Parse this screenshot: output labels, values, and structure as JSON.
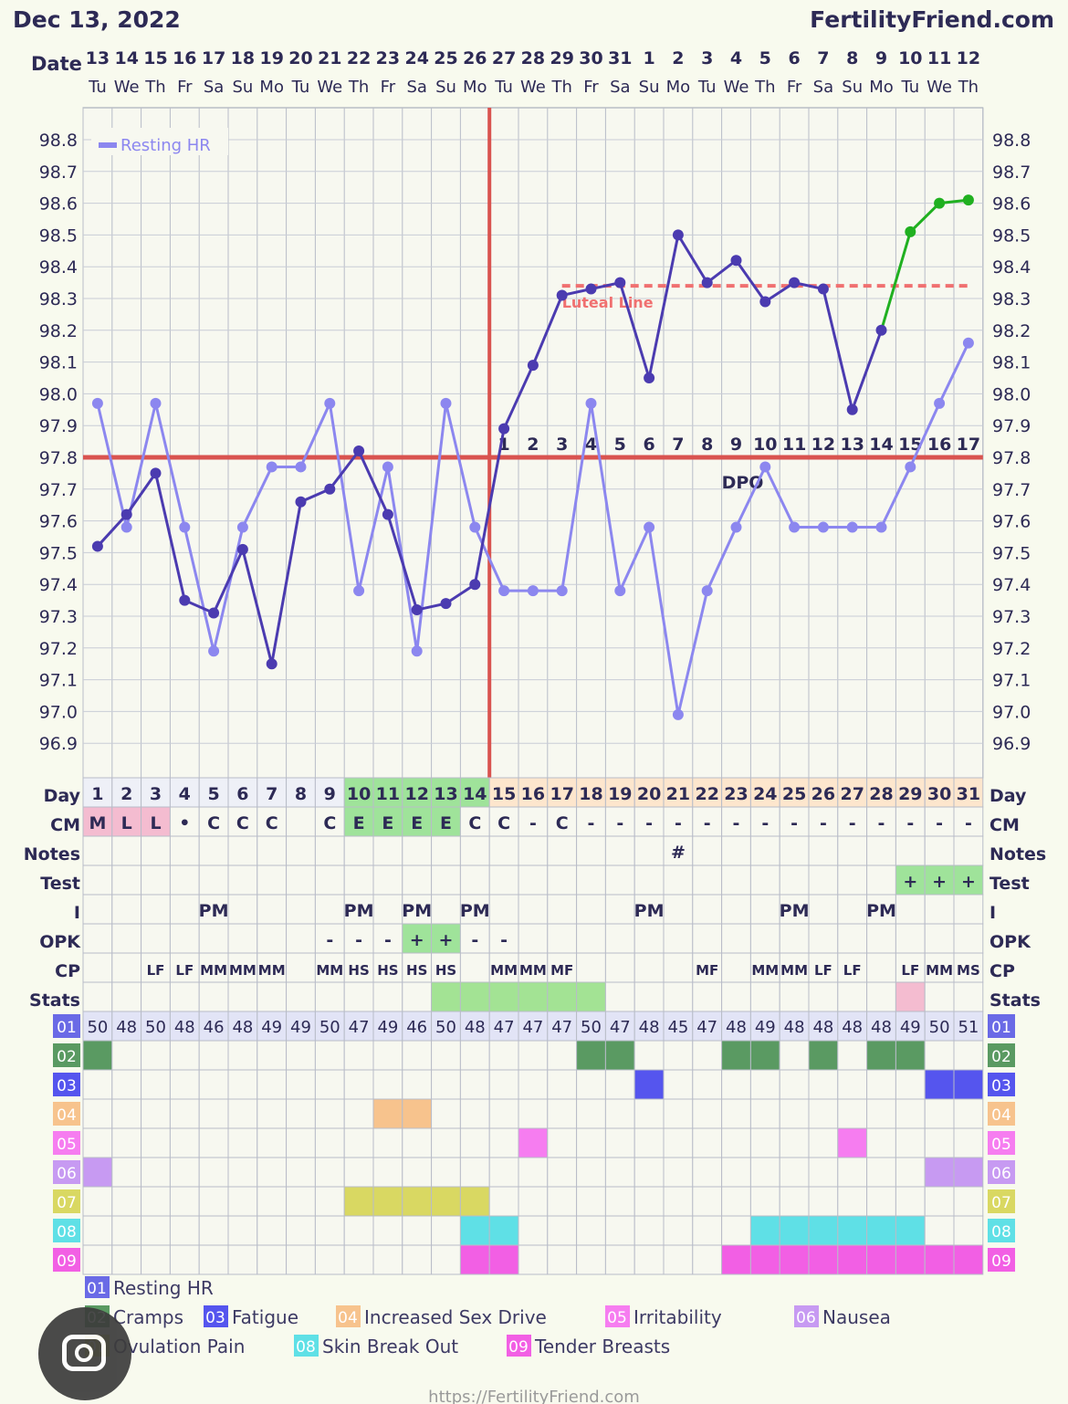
{
  "header": {
    "date": "Dec 13, 2022",
    "site": "FertilityFriend.com"
  },
  "footer": {
    "url": "https://FertilityFriend.com"
  },
  "colors": {
    "temp_line": "#4b3bb0",
    "temp_dot": "#4b3bb0",
    "hr_line": "#8c87ef",
    "post_line": "#20b020",
    "coverline": "#d9534f",
    "ovulation": "#d9534f",
    "luteal": "#f07070",
    "s01": "#6a6ae6",
    "s02": "#5a9a62",
    "s03": "#5555ee",
    "s04": "#f7c38d",
    "s05": "#f67df0",
    "s06": "#c79af2",
    "s07": "#d9d862",
    "s08": "#5fe0e6",
    "s09": "#f25fe4"
  },
  "labels": {
    "date": "Date",
    "day": "Day",
    "cm": "CM",
    "notes": "Notes",
    "test": "Test",
    "i": "I",
    "opk": "OPK",
    "cp": "CP",
    "stats": "Stats",
    "dpo": "DPO"
  },
  "chart_data": {
    "type": "line",
    "title": "",
    "dates": [
      "13",
      "14",
      "15",
      "16",
      "17",
      "18",
      "19",
      "20",
      "21",
      "22",
      "23",
      "24",
      "25",
      "26",
      "27",
      "28",
      "29",
      "30",
      "31",
      "1",
      "2",
      "3",
      "4",
      "5",
      "6",
      "7",
      "8",
      "9",
      "10",
      "11",
      "12"
    ],
    "weekdays": [
      "Tu",
      "We",
      "Th",
      "Fr",
      "Sa",
      "Su",
      "Mo",
      "Tu",
      "We",
      "Th",
      "Fr",
      "Sa",
      "Su",
      "Mo",
      "Tu",
      "We",
      "Th",
      "Fr",
      "Sa",
      "Su",
      "Mo",
      "Tu",
      "We",
      "Th",
      "Fr",
      "Sa",
      "Su",
      "Mo",
      "Tu",
      "We",
      "Th"
    ],
    "cycle_days": [
      "1",
      "2",
      "3",
      "4",
      "5",
      "6",
      "7",
      "8",
      "9",
      "10",
      "11",
      "12",
      "13",
      "14",
      "15",
      "16",
      "17",
      "18",
      "19",
      "20",
      "21",
      "22",
      "23",
      "24",
      "25",
      "26",
      "27",
      "28",
      "29",
      "30",
      "31"
    ],
    "y_ticks": [
      "98.8",
      "98.7",
      "98.6",
      "98.5",
      "98.4",
      "98.3",
      "98.2",
      "98.1",
      "98.0",
      "97.9",
      "97.8",
      "97.7",
      "97.6",
      "97.5",
      "97.4",
      "97.3",
      "97.2",
      "97.1",
      "97.0",
      "96.9"
    ],
    "ylim": [
      96.86,
      98.86
    ],
    "coverline": 97.8,
    "ovulation_day": 14,
    "luteal_line": {
      "label": "Luteal Line",
      "value": 98.34,
      "from_day": 17,
      "to_day": 31
    },
    "dpo_label": "DPO",
    "dpo_numbers": [
      "1",
      "2",
      "3",
      "4",
      "5",
      "6",
      "7",
      "8",
      "9",
      "10",
      "11",
      "12",
      "13",
      "14",
      "15",
      "16",
      "17"
    ],
    "series": [
      {
        "name": "Temperature",
        "values": [
          97.52,
          97.62,
          97.75,
          97.35,
          97.31,
          97.51,
          97.15,
          97.66,
          97.7,
          97.82,
          97.62,
          97.32,
          97.34,
          97.4,
          97.89,
          98.09,
          98.31,
          98.33,
          98.35,
          98.05,
          98.5,
          98.35,
          98.42,
          98.29,
          98.35,
          98.33,
          97.95,
          98.2,
          98.51,
          98.6,
          98.61
        ]
      },
      {
        "name": "Resting HR",
        "values": [
          97.97,
          97.58,
          97.97,
          97.58,
          97.19,
          97.58,
          97.77,
          97.77,
          97.97,
          97.38,
          97.77,
          97.19,
          97.97,
          97.58,
          97.38,
          97.38,
          97.38,
          97.97,
          97.38,
          97.58,
          96.99,
          97.38,
          97.58,
          97.77,
          97.58,
          97.58,
          97.58,
          97.58,
          97.77,
          97.97,
          98.16
        ]
      }
    ],
    "legend": "top-left"
  },
  "rows": {
    "cm": [
      "M",
      "L",
      "L",
      "•",
      "C",
      "C",
      "C",
      "",
      "C",
      "E",
      "E",
      "E",
      "E",
      "C",
      "C",
      "-",
      "C",
      "-",
      "-",
      "-",
      "-",
      "-",
      "-",
      "-",
      "-",
      "-",
      "-",
      "-",
      "-",
      "-",
      "-"
    ],
    "notes": [
      "",
      "",
      "",
      "",
      "",
      "",
      "",
      "",
      "",
      "",
      "",
      "",
      "",
      "",
      "",
      "",
      "",
      "",
      "",
      "",
      "#",
      "",
      "",
      "",
      "",
      "",
      "",
      "",
      "",
      "",
      ""
    ],
    "test": [
      "",
      "",
      "",
      "",
      "",
      "",
      "",
      "",
      "",
      "",
      "",
      "",
      "",
      "",
      "",
      "",
      "",
      "",
      "",
      "",
      "",
      "",
      "",
      "",
      "",
      "",
      "",
      "",
      "+",
      "+",
      "+"
    ],
    "intercourse": [
      "",
      "",
      "",
      "",
      "PM",
      "",
      "",
      "",
      "",
      "PM",
      "",
      "PM",
      "",
      "PM",
      "",
      "",
      "",
      "",
      "",
      "PM",
      "",
      "",
      "",
      "",
      "PM",
      "",
      "",
      "PM",
      "",
      "",
      ""
    ],
    "opk": [
      "",
      "",
      "",
      "",
      "",
      "",
      "",
      "",
      "-",
      "-",
      "-",
      "+",
      "+",
      "-",
      "-",
      "",
      "",
      "",
      "",
      "",
      "",
      "",
      "",
      "",
      "",
      "",
      "",
      "",
      "",
      "",
      ""
    ],
    "cp": [
      "",
      "",
      "LF",
      "LF",
      "MM",
      "MM",
      "MM",
      "",
      "MM",
      "HS",
      "HS",
      "HS",
      "HS",
      "",
      "MM",
      "MM",
      "MF",
      "",
      "",
      "",
      "",
      "MF",
      "",
      "MM",
      "MM",
      "LF",
      "LF",
      "",
      "LF",
      "MM",
      "MS"
    ],
    "stats": [
      "",
      "",
      "",
      "",
      "",
      "",
      "",
      "",
      "",
      "",
      "",
      "",
      "",
      "",
      "",
      "",
      "",
      "",
      "",
      "",
      "",
      "",
      "",
      "",
      "",
      "",
      "",
      "",
      "",
      "",
      ""
    ],
    "hr": [
      "50",
      "48",
      "50",
      "48",
      "46",
      "48",
      "49",
      "49",
      "50",
      "47",
      "49",
      "46",
      "50",
      "48",
      "47",
      "47",
      "47",
      "50",
      "47",
      "48",
      "45",
      "47",
      "48",
      "49",
      "48",
      "48",
      "48",
      "48",
      "49",
      "50",
      "51"
    ]
  },
  "symptom_rows": [
    "01",
    "02",
    "03",
    "04",
    "05",
    "06",
    "07",
    "08",
    "09"
  ],
  "symptom_days": {
    "02": [
      1,
      18,
      19,
      23,
      24,
      26,
      28,
      29
    ],
    "03": [
      20,
      30,
      31
    ],
    "04": [
      11,
      12
    ],
    "05": [
      16,
      27
    ],
    "06": [
      1,
      30,
      31
    ],
    "07": [
      10,
      11,
      12,
      13,
      14
    ],
    "08": [
      14,
      15,
      24,
      25,
      26,
      27,
      28,
      29
    ],
    "09": [
      14,
      15,
      23,
      24,
      25,
      26,
      27,
      28,
      29,
      30,
      31
    ]
  },
  "legend": [
    {
      "code": "01",
      "label": "Resting HR"
    },
    {
      "code": "02",
      "label": "Cramps"
    },
    {
      "code": "03",
      "label": "Fatigue"
    },
    {
      "code": "04",
      "label": "Increased Sex Drive"
    },
    {
      "code": "05",
      "label": "Irritability"
    },
    {
      "code": "06",
      "label": "Nausea"
    },
    {
      "code": "07",
      "label": "Ovulation Pain"
    },
    {
      "code": "08",
      "label": "Skin Break Out"
    },
    {
      "code": "09",
      "label": "Tender Breasts"
    }
  ]
}
